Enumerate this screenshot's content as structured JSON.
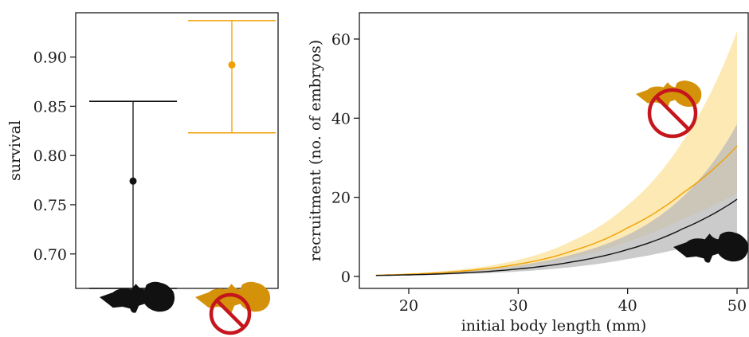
{
  "colors": {
    "predator": "#111111",
    "no_predator": "#f0a000",
    "no_predator_band": "#fde9b4",
    "predator_band": "#b9b9b9",
    "prohibit_sign": "#c4161c",
    "fish_orange": "#d4920a",
    "axis": "#1a1a1a"
  },
  "icons": {
    "predator_fish": "guppy-silhouette-icon",
    "no_predator_fish": "guppy-prohibited-icon"
  },
  "chart_data": [
    {
      "type": "scatter",
      "ylabel": "survival",
      "xlabel": "",
      "categories": [
        "predator",
        "no predator"
      ],
      "category_icons": [
        "guppy-silhouette-icon",
        "guppy-prohibited-icon"
      ],
      "ylim": [
        0.665,
        0.945
      ],
      "yticks": [
        0.7,
        0.75,
        0.8,
        0.85,
        0.9
      ],
      "ytick_labels": [
        "0.70",
        "0.75",
        "0.80",
        "0.85",
        "0.90"
      ],
      "series": [
        {
          "color": "#111111",
          "estimate": 0.774,
          "lower": 0.665,
          "upper": 0.855
        },
        {
          "color": "#f0a000",
          "estimate": 0.892,
          "lower": 0.823,
          "upper": 0.937
        }
      ],
      "grid": false
    },
    {
      "type": "line",
      "xlabel": "initial body length (mm)",
      "ylabel": "recruitment (no. of embryos)",
      "xlim": [
        17,
        50
      ],
      "ylim": [
        0,
        65
      ],
      "xticks": [
        20,
        30,
        40,
        50
      ],
      "xtick_labels": [
        "20",
        "30",
        "40",
        "50"
      ],
      "yticks": [
        0,
        20,
        40,
        60
      ],
      "ytick_labels": [
        "0",
        "20",
        "40",
        "60"
      ],
      "x": [
        17,
        20,
        25,
        30,
        35,
        40,
        45,
        50
      ],
      "series": [
        {
          "icon": "guppy-prohibited-icon",
          "color": "#f0a000",
          "values": [
            0.32,
            0.56,
            1.4,
            3.1,
            6.5,
            12.3,
            21.0,
            33.0
          ],
          "lower": [
            0.22,
            0.4,
            1.05,
            2.35,
            4.8,
            8.8,
            14.5,
            21.0
          ],
          "upper": [
            0.45,
            0.78,
            1.85,
            4.2,
            9.1,
            18.0,
            34.0,
            62.0
          ]
        },
        {
          "icon": "guppy-silhouette-icon",
          "color": "#111111",
          "values": [
            0.25,
            0.41,
            0.9,
            1.9,
            3.7,
            6.8,
            12.0,
            19.5
          ],
          "lower": [
            0.15,
            0.26,
            0.6,
            1.25,
            2.4,
            4.4,
            7.2,
            10.5
          ],
          "upper": [
            0.35,
            0.6,
            1.3,
            2.8,
            5.6,
            10.5,
            20.0,
            38.5
          ]
        }
      ],
      "grid": false
    }
  ]
}
